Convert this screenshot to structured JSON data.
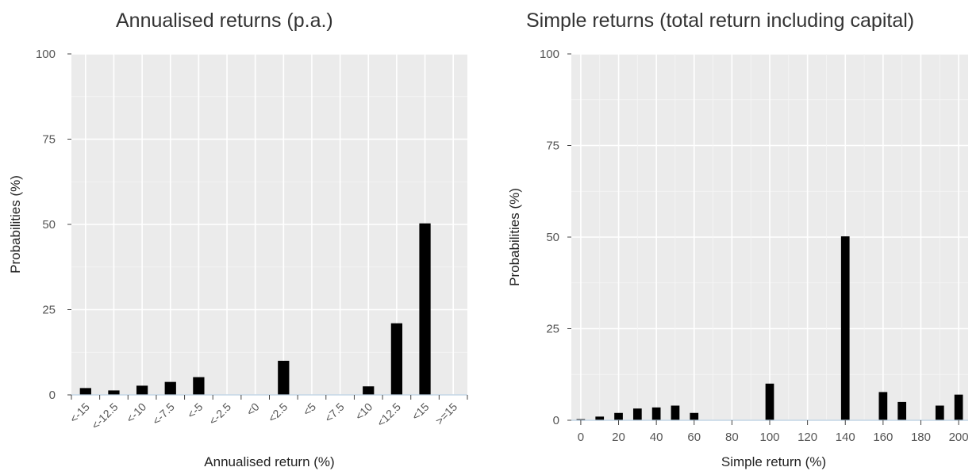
{
  "chart_data": [
    {
      "type": "bar",
      "title": "Annualised returns (p.a.)",
      "xlabel": "Annualised return (%)",
      "ylabel": "Probabilities (%)",
      "categories": [
        "<-15",
        "<-12.5",
        "<-10",
        "<-7.5",
        "<-5",
        "<-2.5",
        "<0",
        "<2.5",
        "<5",
        "<7.5",
        "<10",
        "<12.5",
        "<15",
        ">=15"
      ],
      "values": [
        2,
        1.3,
        2.7,
        3.8,
        5.2,
        0,
        0,
        10,
        0,
        0,
        2.5,
        21,
        50.3,
        0
      ],
      "ylim": [
        0,
        100
      ],
      "yticks": [
        0,
        25,
        50,
        75,
        100
      ],
      "grid": true,
      "bar_color": "#000000",
      "background": "#ebebeb"
    },
    {
      "type": "bar",
      "title": "Simple returns (total return including capital)",
      "xlabel": "Simple return (%)",
      "ylabel": "Probabilities (%)",
      "x": [
        0,
        10,
        20,
        30,
        40,
        50,
        60,
        100,
        140,
        160,
        170,
        190,
        200
      ],
      "values": [
        0.3,
        1,
        2,
        3.2,
        3.5,
        4,
        2,
        10,
        50.2,
        7.7,
        5,
        4,
        7
      ],
      "xlim": [
        -5,
        205
      ],
      "xticks": [
        0,
        20,
        40,
        60,
        80,
        100,
        120,
        140,
        160,
        180,
        200
      ],
      "ylim": [
        0,
        100
      ],
      "yticks": [
        0,
        25,
        50,
        75,
        100
      ],
      "grid": true,
      "bar_color": "#000000",
      "background": "#ebebeb"
    }
  ]
}
